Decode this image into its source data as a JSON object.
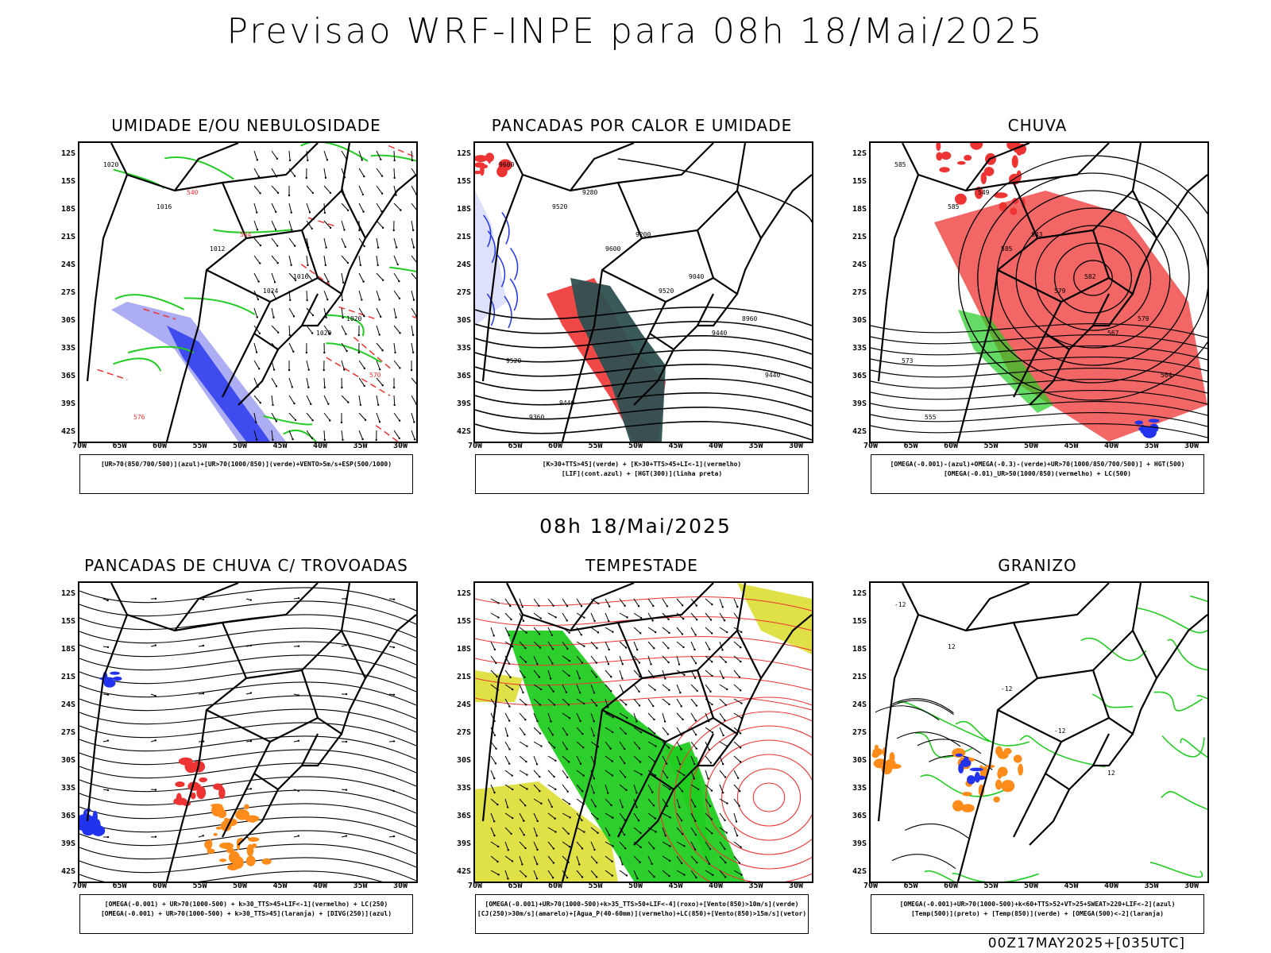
{
  "title": "Previsao WRF-INPE  para 08h 18/Mai/2025",
  "mid_time": "08h 18/Mai/2025",
  "footer": "00Z17MAY2025+[035UTC]",
  "axes": {
    "lat": [
      "12S",
      "15S",
      "18S",
      "21S",
      "24S",
      "27S",
      "30S",
      "33S",
      "36S",
      "39S",
      "42S"
    ],
    "lon": [
      "70W",
      "65W",
      "60W",
      "55W",
      "50W",
      "45W",
      "40W",
      "35W",
      "30W"
    ]
  },
  "colors": {
    "red": "#ee3333",
    "green": "#22cc22",
    "blue": "#2233ee",
    "orange": "#ff8c1a",
    "yellow": "#dddd33",
    "dark": "#2f5050"
  },
  "panels": [
    {
      "title": "UMIDADE E/OU NEBULOSIDADE",
      "caption": [
        "[UR>70(850/700/500)](azul)+[UR>70(1000/850)](verde)+VENTO>5m/s+ESP(500/1000)"
      ],
      "labels": [
        "1020",
        "1016",
        "1012",
        "1024",
        "1020",
        "570",
        "576",
        "540",
        "564",
        "1016",
        "1020"
      ]
    },
    {
      "title": "PANCADAS POR CALOR E UMIDADE",
      "caption": [
        "[K>30+TTS>45](verde) + [K>30+TTS>45+LI<-1](vermelho)",
        "[LIF](cont.azul) + [HGT(300)](linha preta)"
      ],
      "labels": [
        "9600",
        "9520",
        "9600",
        "9520",
        "9440",
        "9440",
        "9360",
        "9280",
        "9200",
        "9040",
        "8960",
        "9520",
        "9440"
      ]
    },
    {
      "title": "CHUVA",
      "caption": [
        "[OMEGA(-0.001)-(azul)+OMEGA(-0.3)-(verde)+UR>70(1000/850/700/500)] + HGT(500)",
        "[OMEGA(-0.01)_UR>50(1000/850)(vermelho) + LC(500)"
      ],
      "labels": [
        "585",
        "585",
        "585",
        "579",
        "567",
        "564",
        "555",
        "549",
        "543",
        "582",
        "579",
        "573"
      ]
    },
    {
      "title": "PANCADAS DE CHUVA C/ TROVOADAS",
      "caption": [
        "[OMEGA(-0.001) + UR>70(1000-500) + k>30_TTS>45+LIF<-1](vermelho) + LC(250)",
        "[OMEGA(-0.001) + UR>70(1000-500) + k>30_TTS>45](laranja) + [DIVG(250)](azul)"
      ],
      "labels": []
    },
    {
      "title": "TEMPESTADE",
      "caption": [
        "[OMEGA(-0.001)+UR>70(1000-500)+k>35_TTS>50+LIF<-4](roxo)+[Vento(850)>10m/s](verde)",
        "[CJ(250)>30m/s](amarelo)+[Agua_P(40-60mm)](vermelho)+LC(850)+[Vento(850)>15m/s](vetor)"
      ],
      "labels": []
    },
    {
      "title": "GRANIZO",
      "caption": [
        "[OMEGA(-0.001)+UR>70(1000-500)+k<60+TTS>52+VT>25+SWEAT>220+LIF<-2](azul)",
        "[Temp(500)](preto) + [Temp(850)](verde) + [OMEGA(500)<-2](laranja)"
      ],
      "labels": [
        "-12",
        "12",
        "-12",
        "-12",
        "12"
      ]
    }
  ]
}
